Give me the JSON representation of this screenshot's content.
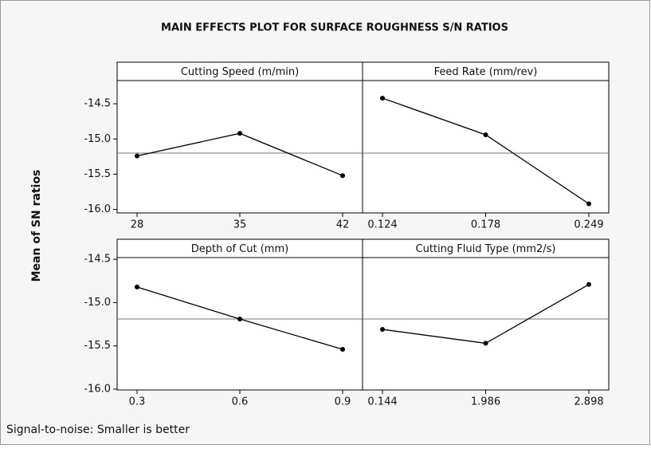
{
  "title": "MAIN EFFECTS PLOT FOR SURFACE ROUGHNESS S/N RATIOS",
  "y_label": "Mean of SN ratios",
  "footnote": "Signal-to-noise: Smaller is better",
  "chart_data": [
    {
      "type": "line",
      "title": "Cutting Speed (m/min)",
      "categories": [
        "28",
        "35",
        "42"
      ],
      "values": [
        -15.24,
        -14.92,
        -15.52
      ],
      "color": "#000000",
      "hline": -15.2,
      "ylim": [
        -16.05,
        -14.17
      ],
      "yticks": [
        -14.5,
        {
          "value": -15,
          "label": "-15.0"
        },
        -15.5,
        {
          "value": -16,
          "label": "-16.0"
        }
      ]
    },
    {
      "type": "line",
      "title": "Feed Rate (mm/rev)",
      "categories": [
        "0.124",
        "0.178",
        "0.249"
      ],
      "values": [
        -14.42,
        -14.94,
        -15.92
      ],
      "color": "#000000",
      "hline": -15.2,
      "ylim": [
        -16.05,
        -14.17
      ],
      "yticks": [
        -14.5,
        {
          "value": -15,
          "label": "-15.0"
        },
        -15.5,
        {
          "value": -16,
          "label": "-16.0"
        }
      ]
    },
    {
      "type": "line",
      "title": "Depth of Cut (mm)",
      "categories": [
        "0.3",
        "0.6",
        "0.9"
      ],
      "values": [
        -14.82,
        -15.19,
        -15.54
      ],
      "color": "#000000",
      "hline": -15.19,
      "ylim": [
        -16.01,
        -14.48
      ],
      "yticks": [
        -14.5,
        {
          "value": -15,
          "label": "-15.0"
        },
        -15.5,
        {
          "value": -16,
          "label": "-16.0"
        }
      ]
    },
    {
      "type": "line",
      "title": "Cutting Fluid Type (mm2/s)",
      "categories": [
        "0.144",
        "1.986",
        "2.898"
      ],
      "values": [
        -15.31,
        -15.47,
        -14.79
      ],
      "color": "#000000",
      "hline": -15.19,
      "ylim": [
        -16.01,
        -14.48
      ],
      "yticks": [
        -14.5,
        {
          "value": -15,
          "label": "-15.0"
        },
        -15.5,
        {
          "value": -16,
          "label": "-16.0"
        }
      ]
    }
  ]
}
